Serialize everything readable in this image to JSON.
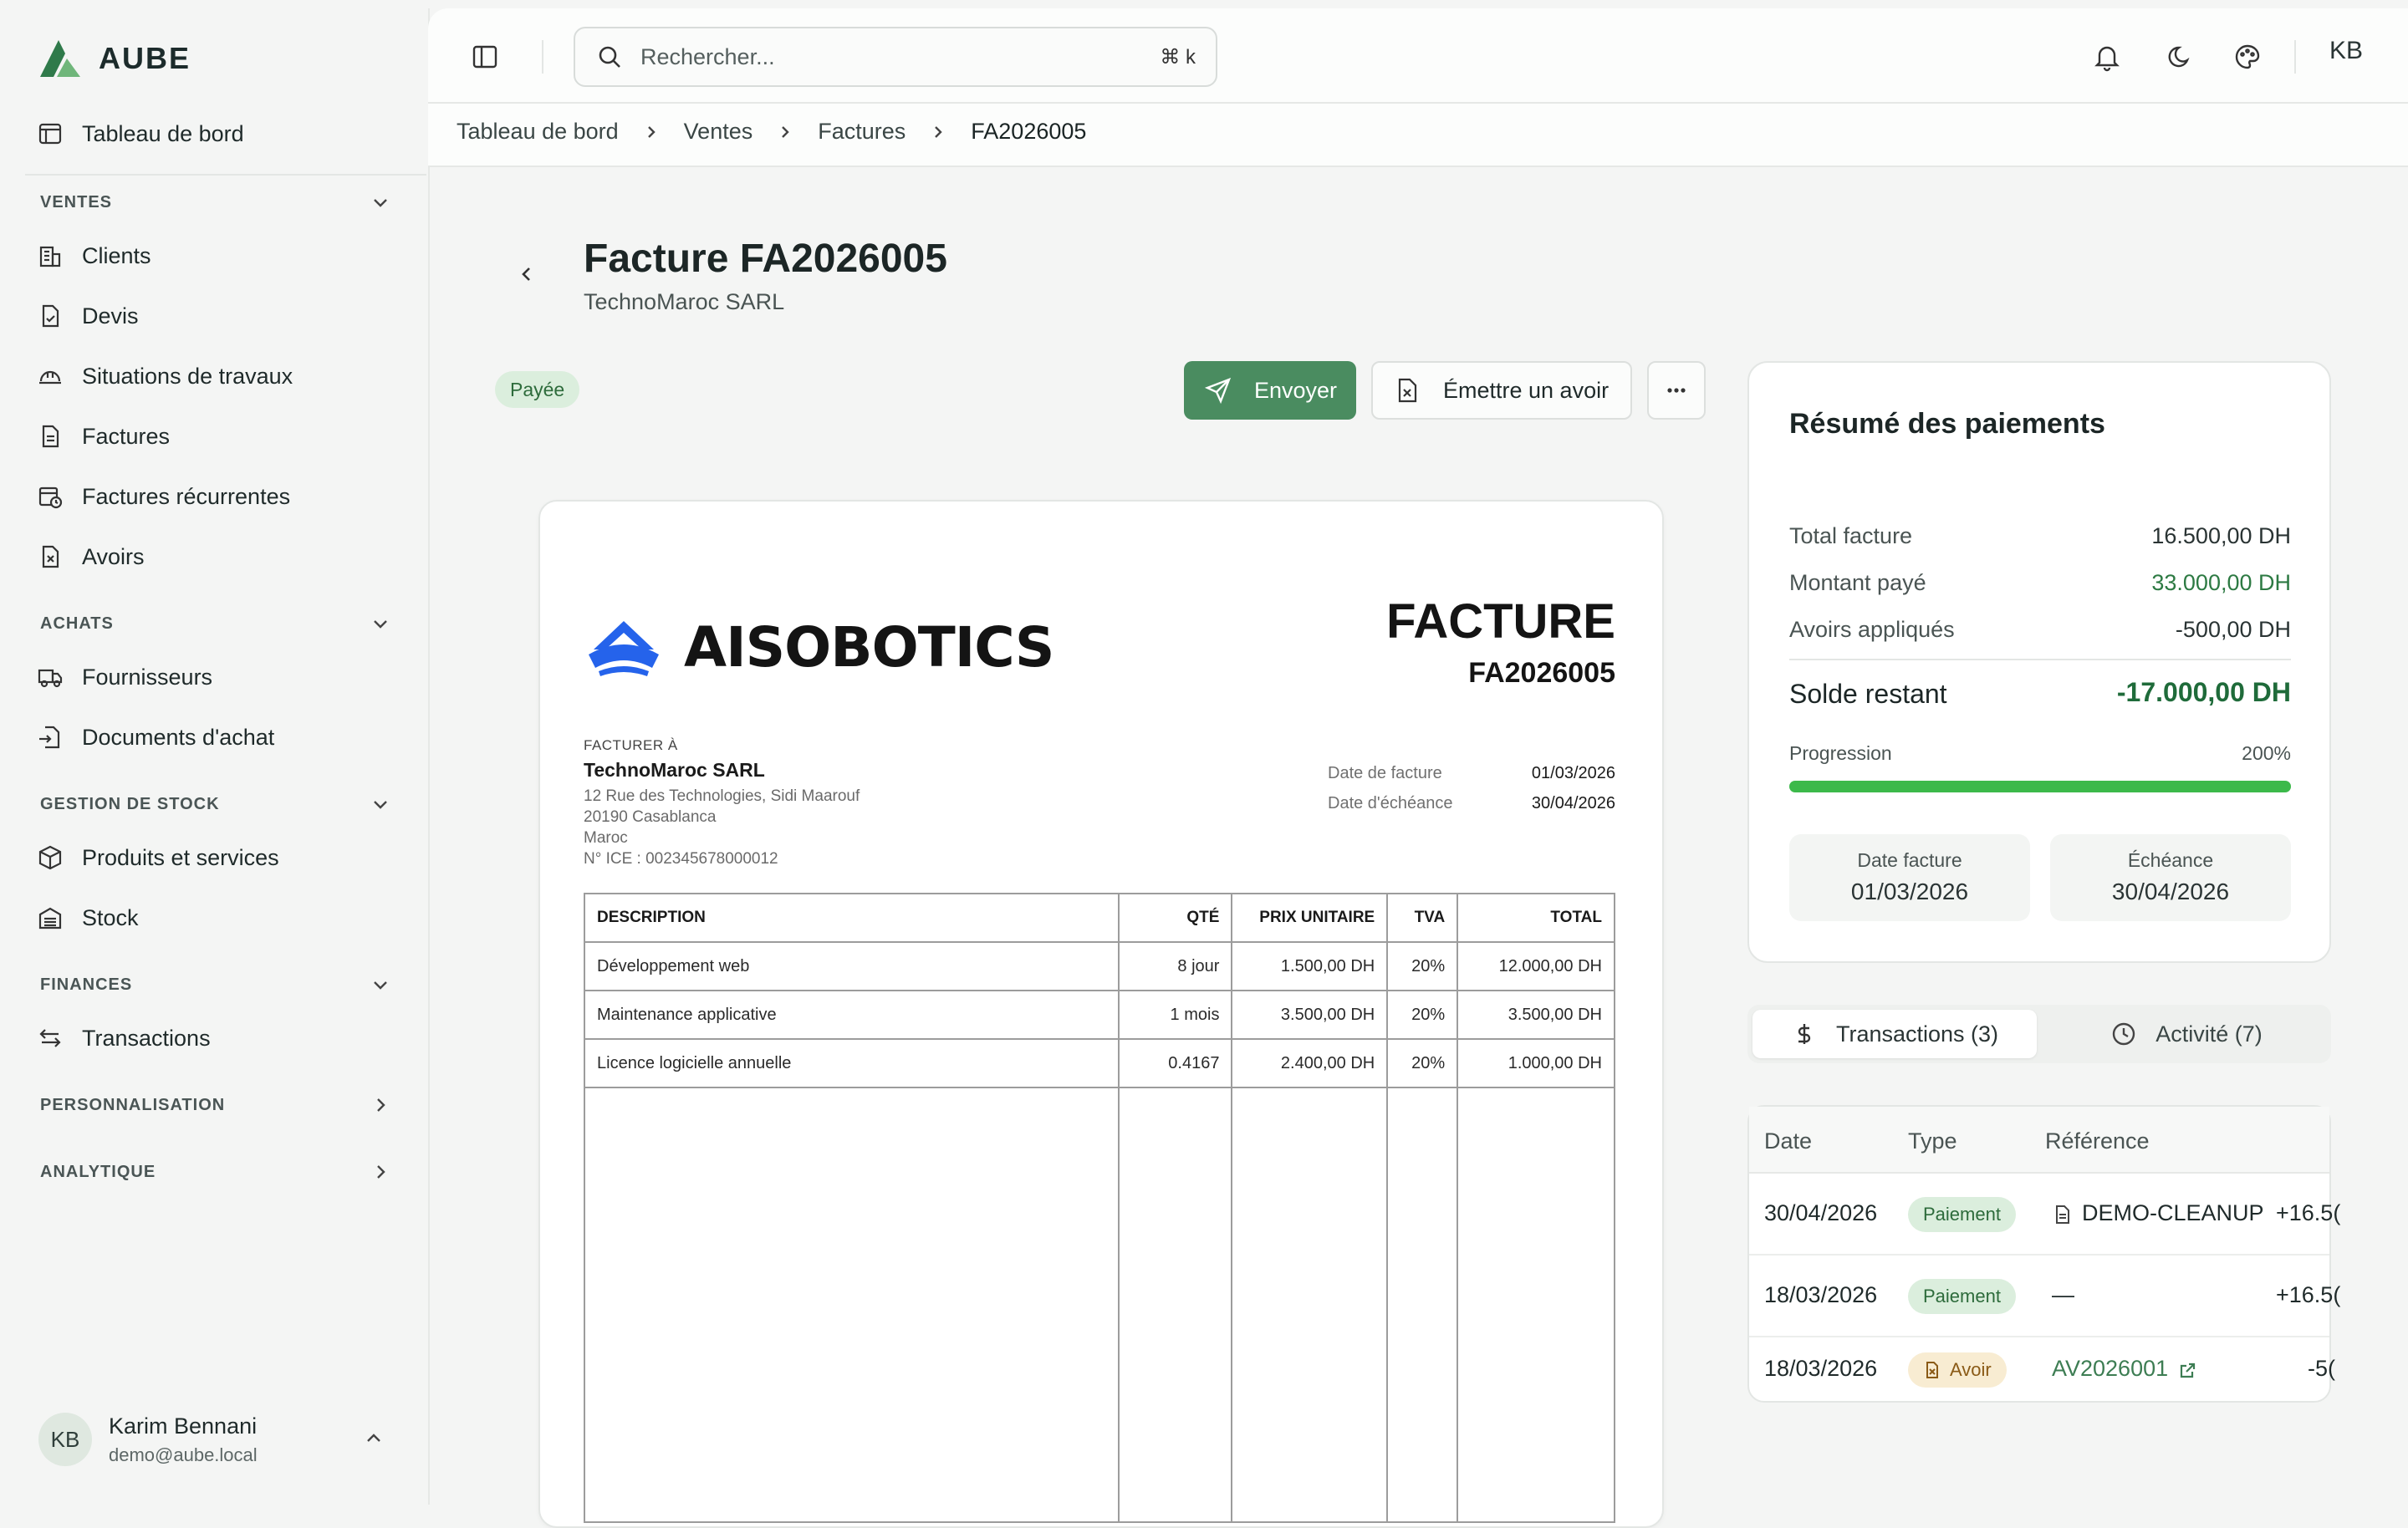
{
  "app": {
    "brand": "AUBE"
  },
  "sidebar": {
    "dashboard": "Tableau de bord",
    "sections": {
      "ventes": "VENTES",
      "achats": "ACHATS",
      "stock": "GESTION DE STOCK",
      "finances": "FINANCES",
      "perso": "PERSONNALISATION",
      "analytique": "ANALYTIQUE"
    },
    "ventes_items": [
      "Clients",
      "Devis",
      "Situations de travaux",
      "Factures",
      "Factures récurrentes",
      "Avoirs"
    ],
    "achats_items": [
      "Fournisseurs",
      "Documents d'achat"
    ],
    "stock_items": [
      "Produits et services",
      "Stock"
    ],
    "finances_items": [
      "Transactions"
    ],
    "user": {
      "initials": "KB",
      "name": "Karim Bennani",
      "email": "demo@aube.local"
    }
  },
  "topbar": {
    "search_placeholder": "Rechercher...",
    "shortcut": "⌘ k",
    "avatar": "KB"
  },
  "breadcrumb": [
    "Tableau de bord",
    "Ventes",
    "Factures",
    "FA2026005"
  ],
  "page": {
    "title": "Facture FA2026005",
    "subtitle": "TechnoMaroc SARL",
    "status": "Payée",
    "send_label": "Envoyer",
    "credit_label": "Émettre un avoir"
  },
  "invoice": {
    "company_logo": "AISOBOTICS",
    "title": "FACTURE",
    "number": "FA2026005",
    "bill_to_label": "FACTURER À",
    "client_name": "TechnoMaroc SARL",
    "client_address": [
      "12 Rue des Technologies, Sidi Maarouf",
      "20190 Casablanca",
      "Maroc",
      "N° ICE : 002345678000012"
    ],
    "date_label": "Date de facture",
    "date_value": "01/03/2026",
    "due_label": "Date d'échéance",
    "due_value": "30/04/2026",
    "columns": [
      "DESCRIPTION",
      "QTÉ",
      "PRIX UNITAIRE",
      "TVA",
      "TOTAL"
    ],
    "lines": [
      {
        "desc": "Développement web",
        "qty": "8 jour",
        "unit": "1.500,00 DH",
        "tva": "20%",
        "total": "12.000,00 DH"
      },
      {
        "desc": "Maintenance applicative",
        "qty": "1 mois",
        "unit": "3.500,00 DH",
        "tva": "20%",
        "total": "3.500,00 DH"
      },
      {
        "desc": "Licence logicielle annuelle",
        "qty": "0.4167",
        "unit": "2.400,00 DH",
        "tva": "20%",
        "total": "1.000,00 DH"
      }
    ]
  },
  "summary": {
    "title": "Résumé des paiements",
    "total_label": "Total facture",
    "total_value": "16.500,00 DH",
    "paid_label": "Montant payé",
    "paid_value": "33.000,00 DH",
    "credits_label": "Avoirs appliqués",
    "credits_value": "-500,00 DH",
    "balance_label": "Solde restant",
    "balance_value": "-17.000,00 DH",
    "progress_label": "Progression",
    "progress_value": "200%",
    "progress_fraction": 1.0,
    "date_label": "Date facture",
    "date_value": "01/03/2026",
    "due_label": "Échéance",
    "due_value": "30/04/2026"
  },
  "tabs": {
    "transactions": "Transactions (3)",
    "activity": "Activité (7)"
  },
  "transactions": {
    "headers": [
      "Date",
      "Type",
      "Référence"
    ],
    "rows": [
      {
        "date": "30/04/2026",
        "type": "Paiement",
        "ref": "DEMO-CLEANUP",
        "amount": "+16.5("
      },
      {
        "date": "18/03/2026",
        "type": "Paiement",
        "ref": "—",
        "amount": "+16.5("
      },
      {
        "date": "18/03/2026",
        "type": "Avoir",
        "ref": "AV2026001",
        "amount": "-5("
      }
    ]
  },
  "colors": {
    "accent": "#4a8c60",
    "success": "#3cb94a",
    "paid_badge": "#dbeedd"
  }
}
